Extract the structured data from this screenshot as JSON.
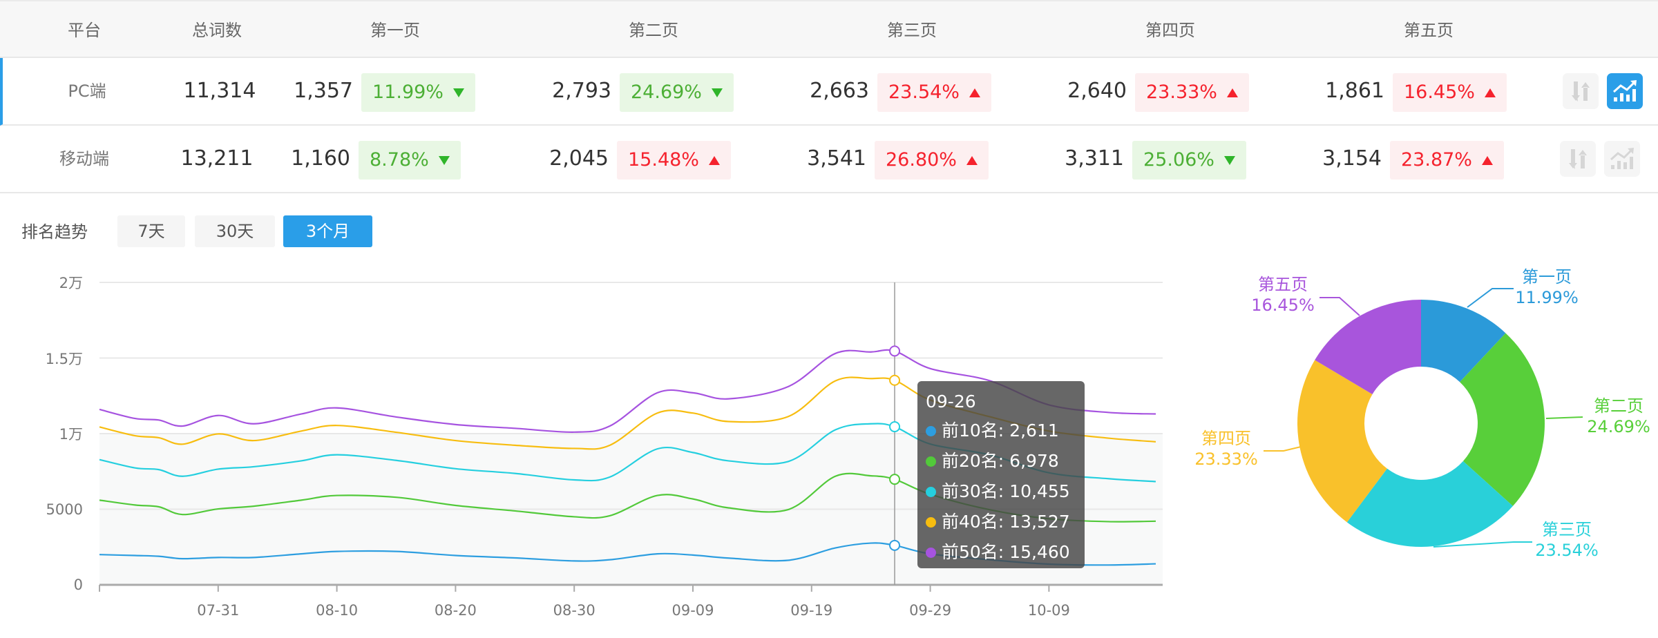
{
  "table": {
    "headers": [
      "平台",
      "总词数",
      "第一页",
      "第二页",
      "第三页",
      "第四页",
      "第五页"
    ],
    "rows": [
      {
        "platform": "PC端",
        "total": "11,314",
        "selected": true,
        "pages": [
          {
            "count": "1,357",
            "pct": "11.99%",
            "trend": "down"
          },
          {
            "count": "2,793",
            "pct": "24.69%",
            "trend": "down"
          },
          {
            "count": "2,663",
            "pct": "23.54%",
            "trend": "up"
          },
          {
            "count": "2,640",
            "pct": "23.33%",
            "trend": "up"
          },
          {
            "count": "1,861",
            "pct": "16.45%",
            "trend": "up"
          }
        ]
      },
      {
        "platform": "移动端",
        "total": "13,211",
        "selected": false,
        "pages": [
          {
            "count": "1,160",
            "pct": "8.78%",
            "trend": "down"
          },
          {
            "count": "2,045",
            "pct": "15.48%",
            "trend": "up"
          },
          {
            "count": "3,541",
            "pct": "26.80%",
            "trend": "up"
          },
          {
            "count": "3,311",
            "pct": "25.06%",
            "trend": "down"
          },
          {
            "count": "3,154",
            "pct": "23.87%",
            "trend": "up"
          }
        ]
      }
    ],
    "row_icons": [
      "sort-icon",
      "trend-chart-icon"
    ]
  },
  "trend": {
    "label": "排名趋势",
    "ranges": [
      "7天",
      "30天",
      "3个月"
    ],
    "active_range": "3个月"
  },
  "colors": {
    "accent": "#2a9ee8",
    "up": "#f5222d",
    "down": "#4caf35"
  },
  "chart_data": [
    {
      "type": "line",
      "xlabel": "",
      "ylabel": "",
      "x_tick_labels": [
        "07-31",
        "08-10",
        "08-20",
        "08-30",
        "09-09",
        "09-19",
        "09-29",
        "10-09"
      ],
      "y_tick_labels": [
        "0",
        "5000",
        "1万",
        "1.5万",
        "2万"
      ],
      "ylim": [
        0,
        20000
      ],
      "x_range": [
        "07-21",
        "10-18"
      ],
      "grid": true,
      "x": [
        "07-21",
        "07-24",
        "07-26",
        "07-28",
        "07-31",
        "08-03",
        "08-07",
        "08-10",
        "08-15",
        "08-20",
        "08-25",
        "08-30",
        "09-02",
        "09-06",
        "09-09",
        "09-12",
        "09-17",
        "09-21",
        "09-24",
        "09-26",
        "09-29",
        "10-04",
        "10-09",
        "10-14",
        "10-18"
      ],
      "series": [
        {
          "name": "前10名",
          "color": "#2d9ee0",
          "values": [
            2000,
            1940,
            1890,
            1730,
            1810,
            1810,
            2050,
            2210,
            2210,
            1940,
            1780,
            1580,
            1660,
            2050,
            1970,
            1770,
            1620,
            2440,
            2760,
            2611,
            2050,
            1660,
            1370,
            1310,
            1390
          ]
        },
        {
          "name": "前20名",
          "color": "#52c93a",
          "values": [
            5600,
            5280,
            5160,
            4650,
            5020,
            5200,
            5600,
            5910,
            5790,
            5250,
            4890,
            4500,
            4570,
            5910,
            5680,
            5090,
            4970,
            7180,
            7210,
            6978,
            5990,
            4970,
            4370,
            4180,
            4210
          ]
        },
        {
          "name": "前30名",
          "color": "#25cfdf",
          "values": [
            8280,
            7730,
            7620,
            7180,
            7650,
            7810,
            8200,
            8600,
            8230,
            7680,
            7370,
            6940,
            7130,
            8990,
            8750,
            8200,
            8150,
            10250,
            10650,
            10455,
            9310,
            8600,
            7410,
            7020,
            6830
          ]
        },
        {
          "name": "前40名",
          "color": "#f7bd10",
          "values": [
            10440,
            9860,
            9730,
            9300,
            9980,
            9540,
            10170,
            10540,
            10090,
            9540,
            9230,
            9020,
            9230,
            11360,
            11360,
            10800,
            11120,
            13490,
            13640,
            13527,
            12220,
            11120,
            10170,
            9700,
            9460
          ]
        },
        {
          "name": "前50名",
          "color": "#a653e0",
          "values": [
            11600,
            11000,
            10900,
            10500,
            11200,
            10650,
            11300,
            11700,
            11100,
            10600,
            10350,
            10100,
            10500,
            12700,
            12700,
            12300,
            13100,
            15300,
            15400,
            15460,
            14300,
            13500,
            11900,
            11400,
            11300
          ]
        }
      ],
      "tooltip": {
        "date": "09-26",
        "items": [
          {
            "label": "前10名: 2,611",
            "color": "#2d9ee0"
          },
          {
            "label": "前20名: 6,978",
            "color": "#52c93a"
          },
          {
            "label": "前30名: 10,455",
            "color": "#25cfdf"
          },
          {
            "label": "前40名: 13,527",
            "color": "#f7bd10"
          },
          {
            "label": "前50名: 15,460",
            "color": "#a653e0"
          }
        ]
      }
    },
    {
      "type": "pie",
      "donut": true,
      "categories": [
        "第一页",
        "第二页",
        "第三页",
        "第四页",
        "第五页"
      ],
      "values": [
        11.99,
        24.69,
        23.54,
        23.33,
        16.45
      ],
      "labels": [
        "11.99%",
        "24.69%",
        "23.54%",
        "23.33%",
        "16.45%"
      ],
      "colors": [
        "#2b9ad9",
        "#58cf3a",
        "#29d0d9",
        "#f9c12b",
        "#a855dc"
      ]
    }
  ]
}
